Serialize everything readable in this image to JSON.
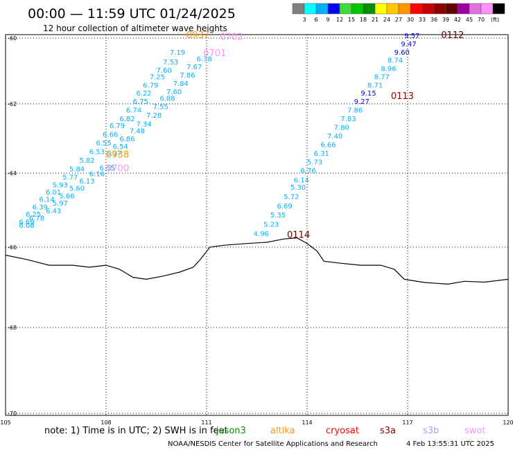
{
  "title": "00:00 — 11:59 UTC 01/24/2025",
  "subtitle": "12 hour collection of altimeter wave heights",
  "colorbar": {
    "colors": [
      "#7f7f7f",
      "#00ffff",
      "#00b0ff",
      "#0000ff",
      "#3ddc3d",
      "#00c800",
      "#009000",
      "#ffff00",
      "#ffc800",
      "#ff9600",
      "#ff0000",
      "#c80000",
      "#900000",
      "#600000",
      "#a000a0",
      "#e070e0",
      "#ff90ff",
      "#000000"
    ],
    "labels": [
      "3",
      "6",
      "9",
      "12",
      "15",
      "18",
      "21",
      "24",
      "27",
      "30",
      "33",
      "36",
      "39",
      "42",
      "45",
      "70"
    ],
    "unit": "(ft)"
  },
  "map": {
    "lon_ticks": [
      "105",
      "108",
      "111",
      "114",
      "117",
      "120"
    ],
    "lat_ticks": [
      "-60",
      "-62",
      "-64",
      "-66",
      "-68",
      "-70"
    ],
    "lon_range": [
      105,
      120
    ],
    "coastline": [
      [
        105.0,
        -66.2
      ],
      [
        105.6,
        -66.3
      ],
      [
        106.3,
        -66.45
      ],
      [
        107.0,
        -66.45
      ],
      [
        107.5,
        -66.5
      ],
      [
        108.0,
        -66.45
      ],
      [
        108.4,
        -66.55
      ],
      [
        108.8,
        -66.75
      ],
      [
        109.2,
        -66.8
      ],
      [
        109.7,
        -66.72
      ],
      [
        110.2,
        -66.62
      ],
      [
        110.6,
        -66.5
      ],
      [
        110.8,
        -66.32
      ],
      [
        111.1,
        -66.0
      ],
      [
        111.5,
        -65.95
      ],
      [
        112.2,
        -65.9
      ],
      [
        112.8,
        -65.87
      ],
      [
        113.3,
        -65.78
      ],
      [
        113.7,
        -65.75
      ],
      [
        114.0,
        -65.9
      ],
      [
        114.3,
        -66.1
      ],
      [
        114.5,
        -66.35
      ],
      [
        115.0,
        -66.4
      ],
      [
        115.6,
        -66.45
      ],
      [
        116.2,
        -66.45
      ],
      [
        116.6,
        -66.55
      ],
      [
        116.9,
        -66.8
      ],
      [
        117.5,
        -66.88
      ],
      [
        118.2,
        -66.92
      ],
      [
        118.7,
        -66.85
      ],
      [
        119.3,
        -66.87
      ],
      [
        120.0,
        -66.8
      ]
    ]
  },
  "passes": [
    {
      "id": "pass-left",
      "values": [
        {
          "v": "6.08",
          "lon": 105.4,
          "lat": -65.48,
          "c": "#00b0ff"
        },
        {
          "v": "6.69",
          "lon": 105.4,
          "lat": -65.38,
          "c": "#00b0ff"
        },
        {
          "v": "6.78",
          "lon": 105.7,
          "lat": -65.28,
          "c": "#00b0ff"
        },
        {
          "v": "6.25",
          "lon": 105.6,
          "lat": -65.18,
          "c": "#00b0ff"
        },
        {
          "v": "6.39",
          "lon": 105.8,
          "lat": -64.98,
          "c": "#00b0ff"
        },
        {
          "v": "6.43",
          "lon": 106.2,
          "lat": -65.08,
          "c": "#00b0ff"
        },
        {
          "v": "6.14",
          "lon": 106.0,
          "lat": -64.78,
          "c": "#00b0ff"
        },
        {
          "v": "5.97",
          "lon": 106.4,
          "lat": -64.88,
          "c": "#00b0ff"
        },
        {
          "v": "6.01",
          "lon": 106.2,
          "lat": -64.58,
          "c": "#00b0ff"
        },
        {
          "v": "5.66",
          "lon": 106.6,
          "lat": -64.68,
          "c": "#00b0ff"
        },
        {
          "v": "5.93",
          "lon": 106.4,
          "lat": -64.38,
          "c": "#00b0ff"
        },
        {
          "v": "5.60",
          "lon": 106.9,
          "lat": -64.48,
          "c": "#00b0ff"
        },
        {
          "v": "5.77",
          "lon": 106.7,
          "lat": -64.18,
          "c": "#00b0ff"
        },
        {
          "v": "6.13",
          "lon": 107.2,
          "lat": -64.28,
          "c": "#00b0ff"
        },
        {
          "v": "5.84",
          "lon": 106.9,
          "lat": -63.95,
          "c": "#00b0ff"
        },
        {
          "v": "6.16",
          "lon": 107.5,
          "lat": -64.08,
          "c": "#00b0ff"
        },
        {
          "v": "6.65",
          "lon": 107.8,
          "lat": -63.92,
          "c": "#00b0ff"
        },
        {
          "v": "5.82",
          "lon": 107.2,
          "lat": -63.7,
          "c": "#00b0ff"
        },
        {
          "v": "6.37",
          "lon": 108.0,
          "lat": -63.5,
          "c": "#00b0ff"
        },
        {
          "v": "6.53",
          "lon": 107.5,
          "lat": -63.45,
          "c": "#00b0ff"
        },
        {
          "v": "6.54",
          "lon": 108.2,
          "lat": -63.3,
          "c": "#00b0ff"
        },
        {
          "v": "6.55",
          "lon": 107.7,
          "lat": -63.2,
          "c": "#00b0ff"
        },
        {
          "v": "6.86",
          "lon": 108.4,
          "lat": -63.08,
          "c": "#00b0ff"
        },
        {
          "v": "6.66",
          "lon": 107.9,
          "lat": -62.95,
          "c": "#00b0ff"
        },
        {
          "v": "7.48",
          "lon": 108.7,
          "lat": -62.85,
          "c": "#00b0ff"
        },
        {
          "v": "6.79",
          "lon": 108.1,
          "lat": -62.7,
          "c": "#00b0ff"
        },
        {
          "v": "7.34",
          "lon": 108.9,
          "lat": -62.65,
          "c": "#00b0ff"
        },
        {
          "v": "6.82",
          "lon": 108.4,
          "lat": -62.5,
          "c": "#00b0ff"
        },
        {
          "v": "7.28",
          "lon": 109.2,
          "lat": -62.4,
          "c": "#00b0ff"
        },
        {
          "v": "6.74",
          "lon": 108.6,
          "lat": -62.25,
          "c": "#00b0ff"
        },
        {
          "v": "7.55",
          "lon": 109.4,
          "lat": -62.15,
          "c": "#00b0ff"
        },
        {
          "v": "6.75",
          "lon": 108.8,
          "lat": -62.0,
          "c": "#00b0ff"
        },
        {
          "v": "6.88",
          "lon": 109.6,
          "lat": -61.9,
          "c": "#00b0ff"
        },
        {
          "v": "6.22",
          "lon": 108.9,
          "lat": -61.75,
          "c": "#00b0ff"
        },
        {
          "v": "7.60",
          "lon": 109.8,
          "lat": -61.7,
          "c": "#00b0ff"
        },
        {
          "v": "6.79",
          "lon": 109.1,
          "lat": -61.5,
          "c": "#00b0ff"
        },
        {
          "v": "7.84",
          "lon": 110.0,
          "lat": -61.45,
          "c": "#00b0ff"
        },
        {
          "v": "7.25",
          "lon": 109.3,
          "lat": -61.25,
          "c": "#00b0ff"
        },
        {
          "v": "7.86",
          "lon": 110.2,
          "lat": -61.2,
          "c": "#00b0ff"
        },
        {
          "v": "7.60",
          "lon": 109.5,
          "lat": -61.05,
          "c": "#00b0ff"
        },
        {
          "v": "7.67",
          "lon": 110.4,
          "lat": -60.95,
          "c": "#00b0ff"
        },
        {
          "v": "7.53",
          "lon": 109.7,
          "lat": -60.8,
          "c": "#00b0ff"
        },
        {
          "v": "6.38",
          "lon": 110.7,
          "lat": -60.7,
          "c": "#00b0ff"
        },
        {
          "v": "7.19",
          "lon": 109.9,
          "lat": -60.5,
          "c": "#00b0ff"
        }
      ]
    },
    {
      "id": "pass-right",
      "values": [
        {
          "v": "4.96",
          "lon": 112.4,
          "lat": -65.7,
          "c": "#00b0ff"
        },
        {
          "v": "5.23",
          "lon": 112.7,
          "lat": -65.45,
          "c": "#00b0ff"
        },
        {
          "v": "5.35",
          "lon": 112.9,
          "lat": -65.2,
          "c": "#00b0ff"
        },
        {
          "v": "6.69",
          "lon": 113.1,
          "lat": -64.95,
          "c": "#00b0ff"
        },
        {
          "v": "5.72",
          "lon": 113.3,
          "lat": -64.7,
          "c": "#00b0ff"
        },
        {
          "v": "5.30",
          "lon": 113.5,
          "lat": -64.45,
          "c": "#00b0ff"
        },
        {
          "v": "6.14",
          "lon": 113.6,
          "lat": -64.25,
          "c": "#00b0ff"
        },
        {
          "v": "6.76",
          "lon": 113.8,
          "lat": -64.0,
          "c": "#00b0ff"
        },
        {
          "v": "5.73",
          "lon": 114.0,
          "lat": -63.75,
          "c": "#00b0ff"
        },
        {
          "v": "6.31",
          "lon": 114.2,
          "lat": -63.5,
          "c": "#00b0ff"
        },
        {
          "v": "6.66",
          "lon": 114.4,
          "lat": -63.25,
          "c": "#00b0ff"
        },
        {
          "v": "7.40",
          "lon": 114.6,
          "lat": -63.0,
          "c": "#00b0ff"
        },
        {
          "v": "7.80",
          "lon": 114.8,
          "lat": -62.75,
          "c": "#00b0ff"
        },
        {
          "v": "7.83",
          "lon": 115.0,
          "lat": -62.5,
          "c": "#00b0ff"
        },
        {
          "v": "7.86",
          "lon": 115.2,
          "lat": -62.25,
          "c": "#00b0ff"
        },
        {
          "v": "9.27",
          "lon": 115.4,
          "lat": -62.0,
          "c": "#0000ff"
        },
        {
          "v": "9.15",
          "lon": 115.6,
          "lat": -61.75,
          "c": "#0000ff"
        },
        {
          "v": "8.71",
          "lon": 115.8,
          "lat": -61.5,
          "c": "#00b0ff"
        },
        {
          "v": "8.77",
          "lon": 116.0,
          "lat": -61.25,
          "c": "#00b0ff"
        },
        {
          "v": "8.96",
          "lon": 116.2,
          "lat": -61.0,
          "c": "#00b0ff"
        },
        {
          "v": "8.74",
          "lon": 116.4,
          "lat": -60.75,
          "c": "#00b0ff"
        },
        {
          "v": "9.60",
          "lon": 116.6,
          "lat": -60.5,
          "c": "#0000ff"
        },
        {
          "v": "9.47",
          "lon": 116.8,
          "lat": -60.25,
          "c": "#0000ff"
        },
        {
          "v": "9.57",
          "lon": 116.9,
          "lat": -60.0,
          "c": "#0000ff"
        }
      ]
    }
  ],
  "time_labels": [
    {
      "t": "0937",
      "lon": 110.4,
      "lat": -60.0,
      "c": "#ff9600"
    },
    {
      "t": "0702",
      "lon": 111.4,
      "lat": -60.05,
      "c": "#ff90ff"
    },
    {
      "t": "0701",
      "lon": 110.9,
      "lat": -60.55,
      "c": "#ff90ff"
    },
    {
      "t": "0938",
      "lon": 108.0,
      "lat": -63.55,
      "c": "#ff9600"
    },
    {
      "t": "0700",
      "lon": 108.0,
      "lat": -63.95,
      "c": "#ff90ff"
    },
    {
      "t": "0112",
      "lon": 118.0,
      "lat": -60.0,
      "c": "#600000"
    },
    {
      "t": "0113",
      "lon": 116.5,
      "lat": -61.85,
      "c": "#900000"
    },
    {
      "t": "0114",
      "lon": 113.4,
      "lat": -65.75,
      "c": "#600000"
    }
  ],
  "note": "note:  1) Time is in UTC; 2) SWH is in feet",
  "satellites": [
    {
      "name": "jason3",
      "c": "#009000"
    },
    {
      "name": "altika",
      "c": "#ff9600"
    },
    {
      "name": "cryosat",
      "c": "#ff0000"
    },
    {
      "name": "s3a",
      "c": "#900000"
    },
    {
      "name": "s3b",
      "c": "#a0a0ff"
    },
    {
      "name": "swot",
      "c": "#ff90ff"
    }
  ],
  "credit": "NOAA/NESDIS Center for Satellite Applications and Research",
  "timestamp": "4 Feb 13:55:31 UTC 2025"
}
